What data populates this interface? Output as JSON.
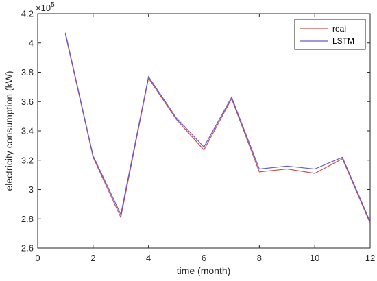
{
  "chart_data": {
    "type": "line",
    "xlabel": "time (month)",
    "ylabel": "electricity consumption (kW)",
    "exponent_label": "×10",
    "exponent_power": "5",
    "xlim": [
      0,
      12
    ],
    "ylim": [
      2.6,
      4.2
    ],
    "xticks": [
      0,
      2,
      4,
      6,
      8,
      10,
      12
    ],
    "yticks": [
      2.6,
      2.8,
      3,
      3.2,
      3.4,
      3.6,
      3.8,
      4,
      4.2
    ],
    "x": [
      1,
      2,
      3,
      4,
      5,
      6,
      7,
      8,
      9,
      10,
      11,
      12
    ],
    "series": [
      {
        "name": "real",
        "color": "#c0504d",
        "values": [
          4.06,
          3.22,
          2.81,
          3.76,
          3.48,
          3.27,
          3.62,
          3.12,
          3.14,
          3.11,
          3.21,
          2.77
        ]
      },
      {
        "name": "LSTM",
        "color": "#6a5acd",
        "values": [
          4.07,
          3.23,
          2.83,
          3.77,
          3.49,
          3.29,
          3.63,
          3.14,
          3.16,
          3.14,
          3.22,
          2.78
        ]
      }
    ],
    "legend_position": "top-right",
    "grid": false
  }
}
